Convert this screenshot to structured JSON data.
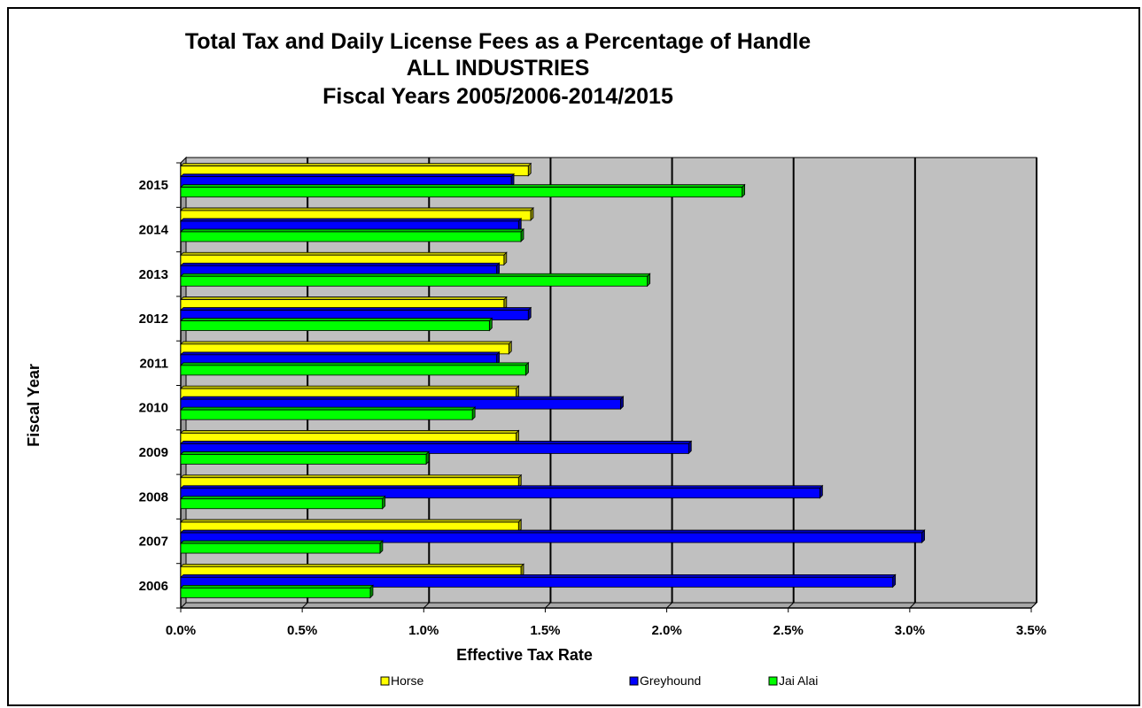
{
  "chart_data": {
    "type": "bar",
    "orientation": "horizontal",
    "title_lines": [
      "Total Tax and Daily License Fees as a Percentage of Handle",
      "ALL INDUSTRIES",
      "Fiscal Years 2005/2006-2014/2015"
    ],
    "xlabel": "Effective Tax Rate",
    "ylabel": "Fiscal Year",
    "categories": [
      "2006",
      "2007",
      "2008",
      "2009",
      "2010",
      "2011",
      "2012",
      "2013",
      "2014",
      "2015"
    ],
    "x_ticks": [
      "0.0%",
      "0.5%",
      "1.0%",
      "1.5%",
      "2.0%",
      "2.5%",
      "3.0%",
      "3.5%"
    ],
    "xlim": [
      0,
      3.5
    ],
    "x_units": "percent",
    "grid": true,
    "legend_position": "bottom",
    "series": [
      {
        "name": "Horse",
        "color": "#ffff00",
        "values": [
          1.4,
          1.39,
          1.39,
          1.38,
          1.38,
          1.35,
          1.33,
          1.33,
          1.44,
          1.43
        ]
      },
      {
        "name": "Greyhound",
        "color": "#0000ff",
        "values": [
          2.93,
          3.05,
          2.63,
          2.09,
          1.81,
          1.3,
          1.43,
          1.3,
          1.39,
          1.36
        ]
      },
      {
        "name": "Jai Alai",
        "color": "#00ff00",
        "values": [
          0.78,
          0.82,
          0.83,
          1.01,
          1.2,
          1.42,
          1.27,
          1.92,
          1.4,
          2.31
        ]
      }
    ]
  }
}
